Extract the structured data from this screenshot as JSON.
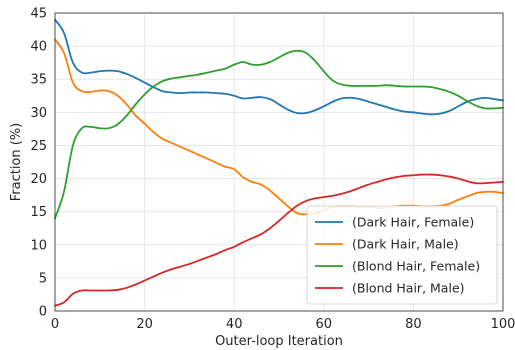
{
  "chart_data": {
    "type": "line",
    "title": "",
    "xlabel": "Outer-loop Iteration",
    "ylabel": "Fraction (%)",
    "xlim": [
      0,
      100
    ],
    "ylim": [
      0,
      45
    ],
    "xticks": [
      0,
      20,
      40,
      60,
      80,
      100
    ],
    "yticks": [
      0,
      5,
      10,
      15,
      20,
      25,
      30,
      35,
      40,
      45
    ],
    "grid": true,
    "legend_position": "lower-right",
    "series": [
      {
        "name": "(Dark Hair, Female)",
        "color": "#1f77b4",
        "x": [
          0,
          2,
          4,
          6,
          8,
          10,
          12,
          14,
          16,
          18,
          20,
          22,
          24,
          26,
          28,
          30,
          32,
          34,
          36,
          38,
          40,
          42,
          44,
          46,
          48,
          50,
          52,
          54,
          56,
          58,
          60,
          62,
          64,
          66,
          68,
          70,
          72,
          74,
          76,
          78,
          80,
          82,
          84,
          86,
          88,
          90,
          92,
          94,
          96,
          98,
          100
        ],
        "y": [
          44.0,
          42.0,
          37.5,
          36.0,
          36.0,
          36.2,
          36.3,
          36.2,
          35.8,
          35.2,
          34.5,
          33.8,
          33.2,
          33.0,
          32.9,
          33.0,
          33.0,
          33.0,
          32.9,
          32.8,
          32.5,
          32.1,
          32.2,
          32.3,
          32.0,
          31.2,
          30.4,
          29.9,
          29.9,
          30.3,
          30.9,
          31.6,
          32.1,
          32.2,
          32.0,
          31.6,
          31.2,
          30.8,
          30.4,
          30.1,
          30.0,
          29.8,
          29.7,
          29.8,
          30.2,
          30.9,
          31.6,
          32.0,
          32.2,
          32.0,
          31.8
        ]
      },
      {
        "name": "(Dark Hair, Male)",
        "color": "#ff7f0e",
        "x": [
          0,
          2,
          4,
          6,
          8,
          10,
          12,
          14,
          16,
          18,
          20,
          22,
          24,
          26,
          28,
          30,
          32,
          34,
          36,
          38,
          40,
          42,
          44,
          46,
          48,
          50,
          52,
          54,
          56,
          58,
          60,
          62,
          64,
          66,
          68,
          70,
          72,
          74,
          76,
          78,
          80,
          82,
          84,
          86,
          88,
          90,
          92,
          94,
          96,
          98,
          100
        ],
        "y": [
          41.0,
          39.0,
          34.5,
          33.2,
          33.1,
          33.3,
          33.2,
          32.5,
          31.2,
          29.5,
          28.3,
          27.0,
          26.0,
          25.4,
          24.8,
          24.2,
          23.6,
          23.0,
          22.4,
          21.8,
          21.4,
          20.2,
          19.5,
          19.1,
          18.2,
          17.0,
          15.8,
          14.8,
          14.6,
          14.8,
          15.3,
          15.7,
          15.8,
          15.8,
          15.7,
          15.7,
          15.6,
          15.6,
          15.8,
          15.9,
          15.9,
          15.8,
          15.8,
          15.9,
          16.2,
          16.8,
          17.3,
          17.8,
          18.0,
          18.0,
          17.8
        ]
      },
      {
        "name": "(Blond Hair, Female)",
        "color": "#2ca02c",
        "x": [
          0,
          2,
          4,
          6,
          8,
          10,
          12,
          14,
          16,
          18,
          20,
          22,
          24,
          26,
          28,
          30,
          32,
          34,
          36,
          38,
          40,
          42,
          44,
          46,
          48,
          50,
          52,
          54,
          56,
          58,
          60,
          62,
          64,
          66,
          68,
          70,
          72,
          74,
          76,
          78,
          80,
          82,
          84,
          86,
          88,
          90,
          92,
          94,
          96,
          98,
          100
        ],
        "y": [
          14.0,
          18.0,
          25.0,
          27.6,
          27.8,
          27.6,
          27.6,
          28.2,
          29.5,
          31.2,
          32.7,
          33.9,
          34.7,
          35.1,
          35.3,
          35.5,
          35.7,
          36.0,
          36.3,
          36.6,
          37.2,
          37.6,
          37.2,
          37.2,
          37.6,
          38.3,
          39.0,
          39.3,
          39.0,
          37.8,
          36.2,
          34.8,
          34.2,
          34.0,
          34.0,
          34.0,
          34.0,
          34.1,
          34.0,
          33.9,
          33.9,
          33.9,
          33.8,
          33.5,
          33.1,
          32.5,
          31.7,
          31.0,
          30.6,
          30.6,
          30.7
        ]
      },
      {
        "name": "(Blond Hair, Male)",
        "color": "#d62728",
        "x": [
          0,
          2,
          4,
          6,
          8,
          10,
          12,
          14,
          16,
          18,
          20,
          22,
          24,
          26,
          28,
          30,
          32,
          34,
          36,
          38,
          40,
          42,
          44,
          46,
          48,
          50,
          52,
          54,
          56,
          58,
          60,
          62,
          64,
          66,
          68,
          70,
          72,
          74,
          76,
          78,
          80,
          82,
          84,
          86,
          88,
          90,
          92,
          94,
          96,
          98,
          100
        ],
        "y": [
          0.8,
          1.3,
          2.6,
          3.1,
          3.1,
          3.1,
          3.1,
          3.2,
          3.5,
          4.0,
          4.6,
          5.2,
          5.8,
          6.3,
          6.7,
          7.1,
          7.6,
          8.1,
          8.6,
          9.2,
          9.7,
          10.4,
          11.0,
          11.6,
          12.5,
          13.6,
          14.8,
          15.9,
          16.6,
          17.0,
          17.2,
          17.4,
          17.7,
          18.1,
          18.6,
          19.1,
          19.5,
          19.9,
          20.2,
          20.4,
          20.5,
          20.6,
          20.6,
          20.5,
          20.3,
          20.0,
          19.6,
          19.3,
          19.3,
          19.4,
          19.5
        ]
      }
    ]
  }
}
